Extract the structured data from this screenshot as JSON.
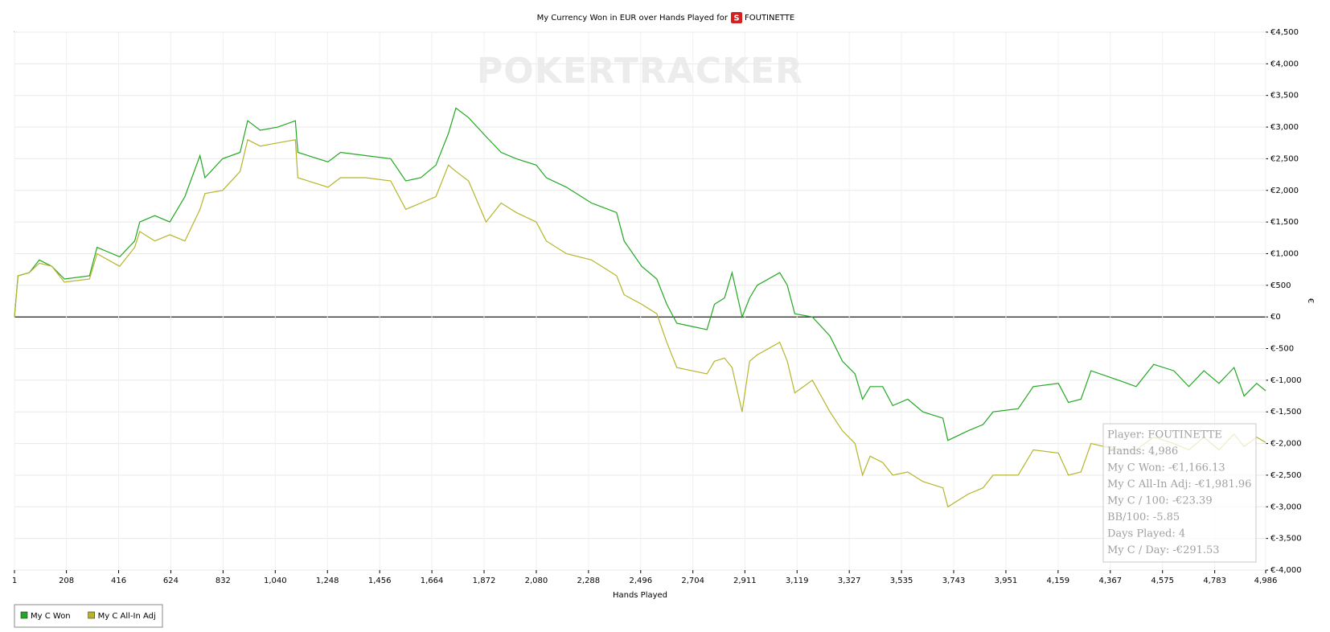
{
  "chart_data": {
    "type": "line",
    "title": "My Currency Won in EUR over Hands Played for",
    "title_player": "FOUTINETTE",
    "watermark": "POKERTRACKER",
    "x_label": "Hands Played",
    "y_label": "€",
    "x": [
      1,
      15,
      60,
      100,
      150,
      200,
      300,
      330,
      420,
      480,
      500,
      560,
      620,
      680,
      740,
      760,
      830,
      900,
      930,
      980,
      1050,
      1120,
      1130,
      1250,
      1300,
      1400,
      1500,
      1560,
      1620,
      1680,
      1730,
      1760,
      1810,
      1880,
      1940,
      2000,
      2080,
      2120,
      2200,
      2300,
      2400,
      2430,
      2500,
      2560,
      2600,
      2640,
      2700,
      2760,
      2790,
      2830,
      2860,
      2900,
      2930,
      2960,
      3050,
      3080,
      3110,
      3180,
      3250,
      3300,
      3350,
      3380,
      3410,
      3460,
      3500,
      3560,
      3620,
      3700,
      3720,
      3800,
      3860,
      3900,
      4000,
      4060,
      4160,
      4200,
      4250,
      4290,
      4400,
      4470,
      4540,
      4620,
      4680,
      4740,
      4800,
      4860,
      4900,
      4950,
      4986
    ],
    "series": [
      {
        "name": "My C Won",
        "color": "#22a822",
        "values": [
          0,
          650,
          700,
          900,
          800,
          600,
          650,
          1100,
          950,
          1200,
          1500,
          1600,
          1500,
          1900,
          2550,
          2200,
          2500,
          2600,
          3100,
          2950,
          3000,
          3100,
          2600,
          2450,
          2600,
          2550,
          2500,
          2150,
          2200,
          2400,
          2900,
          3300,
          3150,
          2850,
          2600,
          2500,
          2400,
          2200,
          2050,
          1800,
          1650,
          1200,
          800,
          600,
          200,
          -100,
          -150,
          -200,
          200,
          300,
          700,
          0,
          300,
          500,
          700,
          500,
          50,
          0,
          -300,
          -700,
          -900,
          -1300,
          -1100,
          -1100,
          -1400,
          -1300,
          -1500,
          -1600,
          -1950,
          -1800,
          -1700,
          -1500,
          -1450,
          -1100,
          -1050,
          -1350,
          -1300,
          -850,
          -1000,
          -1100,
          -750,
          -850,
          -1100,
          -850,
          -1050,
          -800,
          -1250,
          -1050,
          -1166.13
        ]
      },
      {
        "name": "My C All-In Adj",
        "color": "#b5b52a",
        "values": [
          0,
          650,
          700,
          850,
          800,
          550,
          600,
          1000,
          800,
          1100,
          1350,
          1200,
          1300,
          1200,
          1700,
          1950,
          2000,
          2300,
          2800,
          2700,
          2750,
          2800,
          2200,
          2050,
          2200,
          2200,
          2150,
          1700,
          1800,
          1900,
          2400,
          2300,
          2150,
          1500,
          1800,
          1650,
          1500,
          1200,
          1000,
          900,
          650,
          350,
          200,
          50,
          -400,
          -800,
          -850,
          -900,
          -700,
          -650,
          -800,
          -1500,
          -700,
          -600,
          -400,
          -700,
          -1200,
          -1000,
          -1500,
          -1800,
          -2000,
          -2500,
          -2200,
          -2300,
          -2500,
          -2450,
          -2600,
          -2700,
          -3000,
          -2800,
          -2700,
          -2500,
          -2500,
          -2100,
          -2150,
          -2500,
          -2450,
          -2000,
          -2100,
          -2100,
          -1900,
          -2000,
          -2100,
          -1900,
          -2100,
          -1850,
          -2050,
          -1900,
          -1981.96
        ]
      }
    ],
    "xlim": [
      1,
      4986
    ],
    "xticks": [
      1,
      208,
      416,
      624,
      832,
      {
        "value": 1040,
        "label": "1,040"
      },
      {
        "value": 1248,
        "label": "1,248"
      },
      {
        "value": 1456,
        "label": "1,456"
      },
      {
        "value": 1664,
        "label": "1,664"
      },
      {
        "value": 1872,
        "label": "1,872"
      },
      {
        "value": 2080,
        "label": "2,080"
      },
      {
        "value": 2288,
        "label": "2,288"
      },
      {
        "value": 2496,
        "label": "2,496"
      },
      {
        "value": 2704,
        "label": "2,704"
      },
      {
        "value": 2911,
        "label": "2,911"
      },
      {
        "value": 3119,
        "label": "3,119"
      },
      {
        "value": 3327,
        "label": "3,327"
      },
      {
        "value": 3535,
        "label": "3,535"
      },
      {
        "value": 3743,
        "label": "3,743"
      },
      {
        "value": 3951,
        "label": "3,951"
      },
      {
        "value": 4159,
        "label": "4,159"
      },
      {
        "value": 4367,
        "label": "4,367"
      },
      {
        "value": 4575,
        "label": "4,575"
      },
      {
        "value": 4783,
        "label": "4,783"
      },
      {
        "value": 4986,
        "label": "4,986"
      }
    ],
    "ylim": [
      -4000,
      4500
    ],
    "yticks": [
      {
        "value": -4000,
        "label": "€-4,000"
      },
      {
        "value": -3500,
        "label": "€-3,500"
      },
      {
        "value": -3000,
        "label": "€-3,000"
      },
      {
        "value": -2500,
        "label": "€-2,500"
      },
      {
        "value": -2000,
        "label": "€-2,000"
      },
      {
        "value": -1500,
        "label": "€-1,500"
      },
      {
        "value": -1000,
        "label": "€-1,000"
      },
      {
        "value": -500,
        "label": "€-500"
      },
      {
        "value": 0,
        "label": "€0"
      },
      {
        "value": 500,
        "label": "€500"
      },
      {
        "value": 1000,
        "label": "€1,000"
      },
      {
        "value": 1500,
        "label": "€1,500"
      },
      {
        "value": 2000,
        "label": "€2,000"
      },
      {
        "value": 2500,
        "label": "€2,500"
      },
      {
        "value": 3000,
        "label": "€3,000"
      },
      {
        "value": 3500,
        "label": "€3,500"
      },
      {
        "value": 4000,
        "label": "€4,000"
      },
      {
        "value": 4500,
        "label": "€4,500"
      }
    ],
    "grid": true,
    "legend": "bottom-left",
    "annotations": [
      "Player: FOUTINETTE",
      "Hands: 4,986",
      "My C Won: -€1,166.13",
      "My C All-In Adj: -€1,981.96",
      "My C / 100: -€23.39",
      "BB/100: -5.85",
      "Days Played: 4",
      "My C / Day: -€291.53"
    ]
  }
}
